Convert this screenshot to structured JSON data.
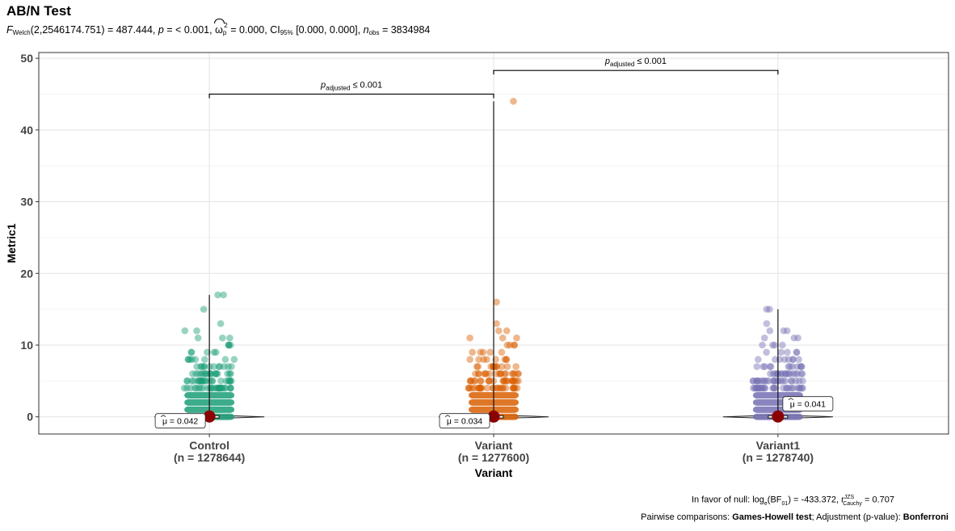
{
  "chart_data": {
    "type": "violin-scatter",
    "title": "AB/N Test",
    "subtitle": {
      "f_label": "F",
      "f_sub": "Welch",
      "stat": "(2,2546174.751) = 487.444, ",
      "p_label": "p",
      "p_text": " = < 0.001, ",
      "omega": "ω",
      "omega_sub": "p",
      "omega_sup": "2",
      "omega_text": " = 0.000, CI",
      "ci_sub": "95%",
      "ci_text": " [0.000, 0.000], ",
      "n_label": "n",
      "n_sub": "obs",
      "n_text": " = 3834984"
    },
    "xlabel": "Variant",
    "ylabel": "Metric1",
    "ylim": [
      -2.4,
      50.8
    ],
    "yticks": [
      0,
      10,
      20,
      30,
      40,
      50
    ],
    "grid": true,
    "categories": [
      {
        "name": "Control",
        "n_label": "(n = 1278644)",
        "mean_label": "μ = 0.042",
        "mean": 0.042,
        "max": 17,
        "color": "#1B9E77",
        "label_side": "left"
      },
      {
        "name": "Variant",
        "n_label": "(n = 1277600)",
        "mean_label": "μ = 0.034",
        "mean": 0.034,
        "max": 44,
        "color": "#D95F02",
        "label_side": "left"
      },
      {
        "name": "Variant1",
        "n_label": "(n = 1278740)",
        "mean_label": "μ = 0.041",
        "mean": 0.041,
        "max": 15,
        "color": "#7570B3",
        "label_side": "right"
      }
    ],
    "comparisons": [
      {
        "from": "Control",
        "to": "Variant",
        "y": 45,
        "label": "p",
        "label_sub": "adjusted",
        "label_text": " ≤ 0.001"
      },
      {
        "from": "Variant",
        "to": "Variant1",
        "y": 48.3,
        "label": "p",
        "label_sub": "adjusted",
        "label_text": " ≤ 0.001"
      }
    ]
  },
  "caption": {
    "line1_pre": "In favor of null: log",
    "line1_sub": "e",
    "line1_mid": "(BF",
    "line1_sub2": "01",
    "line1_post": ") = -433.372, r",
    "line1_sup": "JZS",
    "line1_sub3": "Cauchy",
    "line1_end": " = 0.707",
    "line2_pre": "Pairwise comparisons: ",
    "line2_bold1": "Games-Howell test",
    "line2_mid": "; Adjustment (p-value): ",
    "line2_bold2": "Bonferroni"
  }
}
